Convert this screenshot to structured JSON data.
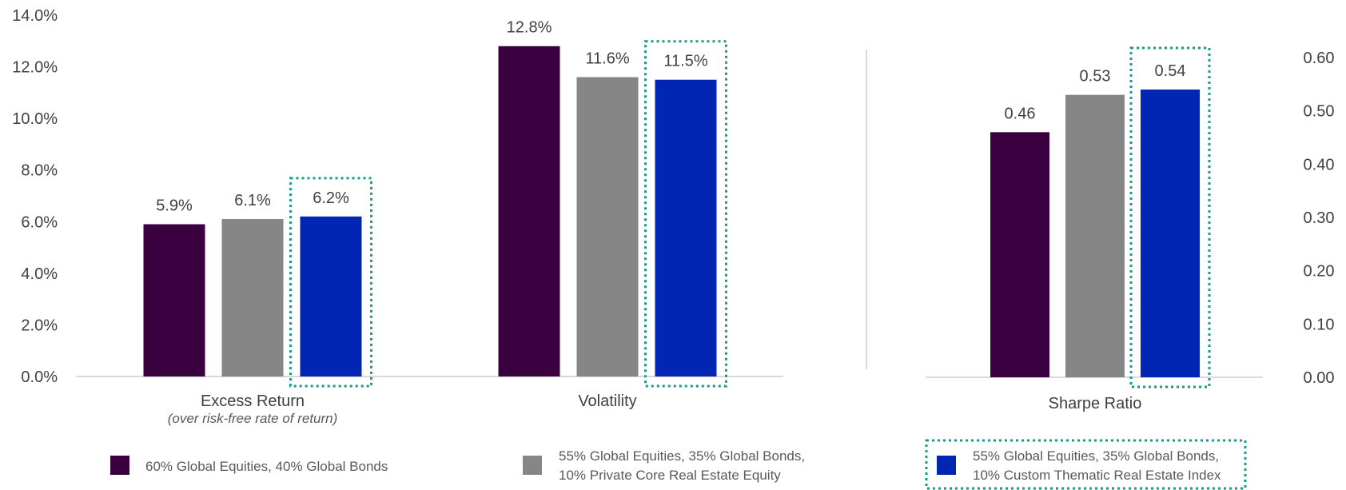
{
  "colors": {
    "series1": "#3b0040",
    "series2": "#868686",
    "series3": "#0026b3",
    "highlight": "#1a9988",
    "axis": "#d9d9d9",
    "text": "#404040"
  },
  "legend": {
    "items": [
      {
        "lines": [
          "60% Global Equities, 40% Global Bonds"
        ]
      },
      {
        "lines": [
          "55% Global Equities, 35% Global Bonds,",
          "10% Private Core Real Estate Equity"
        ]
      },
      {
        "lines": [
          "55% Global Equities, 35% Global Bonds,",
          "10% Custom Thematic Real Estate Index"
        ]
      }
    ],
    "highlighted_item": 3
  },
  "chart_data": [
    {
      "type": "bar",
      "categories": [
        "Excess Return",
        "Volatility"
      ],
      "category_subtitles": [
        "(over risk-free rate of return)",
        ""
      ],
      "series": [
        {
          "name": "60% Global Equities, 40% Global Bonds",
          "values": [
            5.9,
            12.8
          ]
        },
        {
          "name": "55% Global Equities, 35% Global Bonds, 10% Private Core Real Estate Equity",
          "values": [
            6.1,
            11.6
          ]
        },
        {
          "name": "55% Global Equities, 35% Global Bonds, 10% Custom Thematic Real Estate Index",
          "values": [
            6.2,
            11.5
          ]
        }
      ],
      "data_labels": [
        [
          "5.9%",
          "12.8%"
        ],
        [
          "6.1%",
          "11.6%"
        ],
        [
          "6.2%",
          "11.5%"
        ]
      ],
      "yaxis": {
        "ticks": [
          "0.0%",
          "2.0%",
          "4.0%",
          "6.0%",
          "8.0%",
          "10.0%",
          "12.0%",
          "14.0%"
        ],
        "ylim": [
          0,
          14
        ],
        "side": "left"
      },
      "highlighted_series": 3,
      "grid": false
    },
    {
      "type": "bar",
      "categories": [
        "Sharpe Ratio"
      ],
      "series": [
        {
          "name": "60% Global Equities, 40% Global Bonds",
          "values": [
            0.46
          ]
        },
        {
          "name": "55% Global Equities, 35% Global Bonds, 10% Private Core Real Estate Equity",
          "values": [
            0.53
          ]
        },
        {
          "name": "55% Global Equities, 35% Global Bonds, 10% Custom Thematic Real Estate Index",
          "values": [
            0.54
          ]
        }
      ],
      "data_labels": [
        [
          "0.46"
        ],
        [
          "0.53"
        ],
        [
          "0.54"
        ]
      ],
      "yaxis": {
        "ticks": [
          "0.00",
          "0.10",
          "0.20",
          "0.30",
          "0.40",
          "0.50",
          "0.60"
        ],
        "ylim": [
          0,
          0.6
        ],
        "side": "right"
      },
      "highlighted_series": 3,
      "grid": false
    }
  ]
}
